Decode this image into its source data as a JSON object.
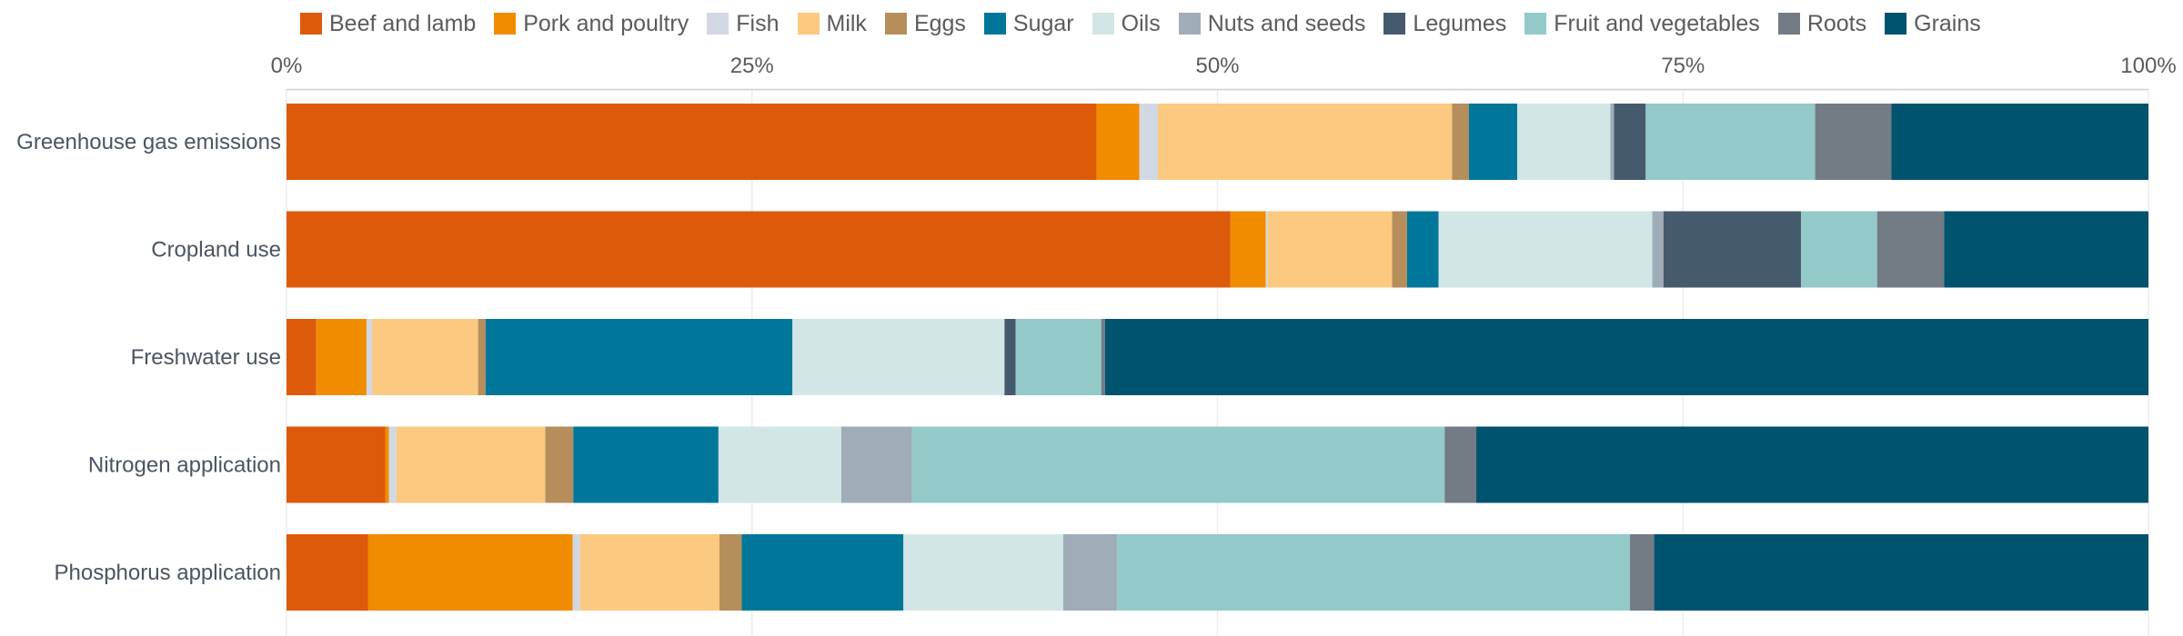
{
  "chart_data": {
    "type": "bar",
    "orientation": "horizontal",
    "stacked": true,
    "normalized": true,
    "title": "",
    "xlabel": "",
    "ylabel": "",
    "xlim": [
      0,
      100
    ],
    "xticks": [
      {
        "value": 0,
        "label": "0%"
      },
      {
        "value": 25,
        "label": "25%"
      },
      {
        "value": 50,
        "label": "50%"
      },
      {
        "value": 75,
        "label": "75%"
      },
      {
        "value": 100,
        "label": "100%"
      }
    ],
    "legend_position": "top",
    "grid": true,
    "categories": [
      "Greenhouse gas emissions",
      "Cropland use",
      "Freshwater use",
      "Nitrogen application",
      "Phosphorus application"
    ],
    "series": [
      {
        "name": "Beef and lamb",
        "color": "#dd5a0a",
        "values": [
          43.5,
          50.8,
          1.6,
          5.3,
          4.4
        ]
      },
      {
        "name": "Pork and poultry",
        "color": "#f18c00",
        "values": [
          2.3,
          1.9,
          2.7,
          0.2,
          11.0
        ]
      },
      {
        "name": "Fish",
        "color": "#d2d8e3",
        "values": [
          1.0,
          0.1,
          0.3,
          0.4,
          0.4
        ]
      },
      {
        "name": "Milk",
        "color": "#fbc97f",
        "values": [
          15.8,
          6.7,
          5.7,
          8.0,
          7.5
        ]
      },
      {
        "name": "Eggs",
        "color": "#b68e5b",
        "values": [
          0.9,
          0.8,
          0.4,
          1.5,
          1.2
        ]
      },
      {
        "name": "Sugar",
        "color": "#00779a",
        "values": [
          2.6,
          1.7,
          16.5,
          7.8,
          8.7
        ]
      },
      {
        "name": "Oils",
        "color": "#d2e6e5",
        "values": [
          5.0,
          11.5,
          11.4,
          6.6,
          8.6
        ]
      },
      {
        "name": "Nuts and seeds",
        "color": "#a0acb8",
        "values": [
          0.2,
          0.6,
          0.0,
          3.8,
          2.9
        ]
      },
      {
        "name": "Legumes",
        "color": "#465a6d",
        "values": [
          1.7,
          7.4,
          0.6,
          0.0,
          0.0
        ]
      },
      {
        "name": "Fruit and vegetables",
        "color": "#93c9c8",
        "values": [
          9.1,
          4.1,
          4.6,
          28.6,
          27.6
        ]
      },
      {
        "name": "Roots",
        "color": "#737b85",
        "values": [
          4.1,
          3.6,
          0.2,
          1.7,
          1.3
        ]
      },
      {
        "name": "Grains",
        "color": "#00536d",
        "values": [
          13.8,
          11.0,
          56.1,
          36.1,
          26.6
        ]
      }
    ]
  }
}
